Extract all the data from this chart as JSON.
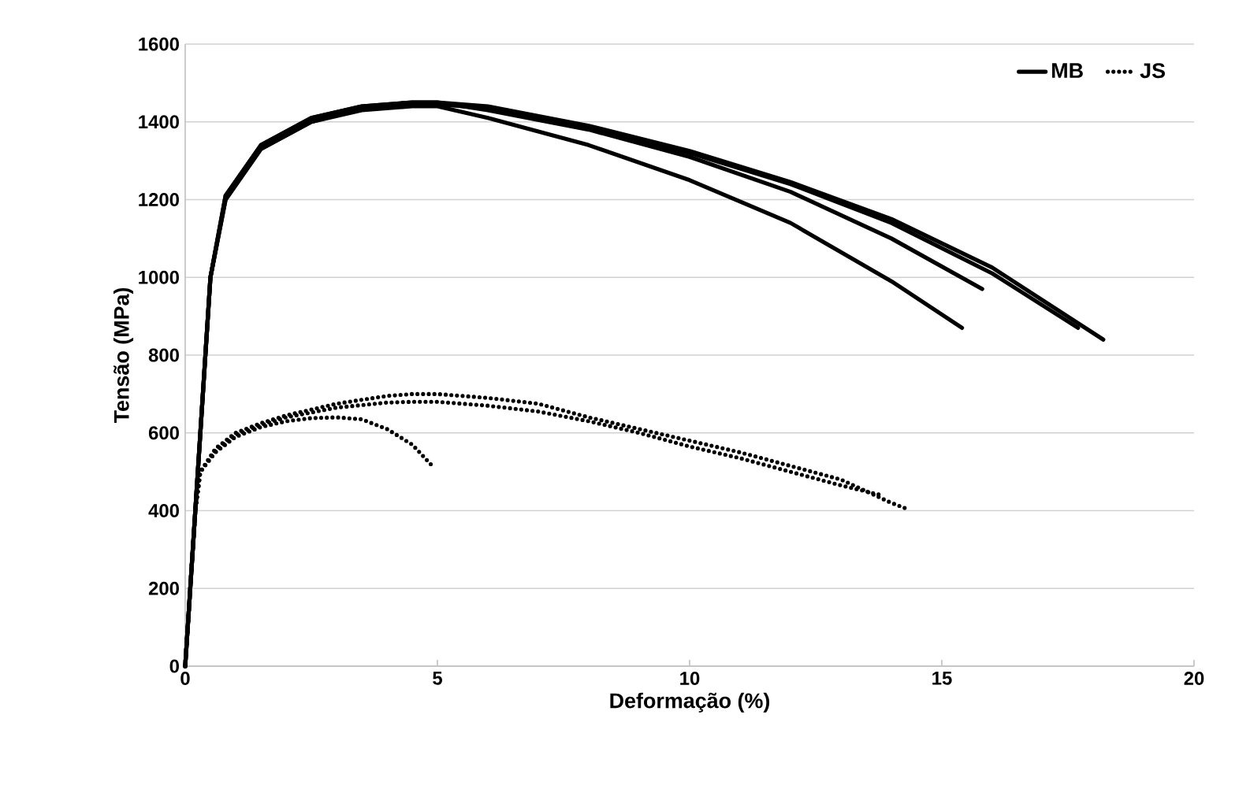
{
  "chart_data": {
    "type": "line",
    "xlabel": "Deformação (%)",
    "ylabel": "Tensão (MPa)",
    "xlim": [
      0,
      20
    ],
    "ylim": [
      0,
      1600
    ],
    "xticks": [
      0,
      5,
      10,
      15,
      20
    ],
    "yticks": [
      0,
      200,
      400,
      600,
      800,
      1000,
      1200,
      1400,
      1600
    ],
    "grid": "y",
    "legend": "top right",
    "series": [
      {
        "name": "MB",
        "color": "#000000",
        "line_style": "solid",
        "x": [
          0,
          0.15,
          0.3,
          0.5,
          0.8,
          1.5,
          2.5,
          3.5,
          4.5,
          5,
          6,
          8,
          10,
          12,
          14,
          15.4
        ],
        "values": [
          0,
          300,
          600,
          1000,
          1200,
          1330,
          1400,
          1430,
          1440,
          1440,
          1410,
          1340,
          1250,
          1140,
          990,
          870
        ]
      },
      {
        "color": "#000000",
        "line_style": "solid",
        "x": [
          0,
          0.15,
          0.3,
          0.5,
          0.8,
          1.5,
          2.5,
          3.5,
          4.5,
          5,
          6,
          8,
          10,
          12,
          14,
          15.8
        ],
        "values": [
          0,
          300,
          600,
          1000,
          1210,
          1340,
          1410,
          1440,
          1450,
          1450,
          1430,
          1380,
          1310,
          1220,
          1100,
          970
        ]
      },
      {
        "color": "#000000",
        "line_style": "solid",
        "x": [
          0,
          0.15,
          0.3,
          0.5,
          0.8,
          1.5,
          2.5,
          3.5,
          4.5,
          5,
          6,
          8,
          10,
          12,
          14,
          16,
          17.7
        ],
        "values": [
          0,
          300,
          600,
          1000,
          1200,
          1330,
          1400,
          1435,
          1445,
          1445,
          1435,
          1385,
          1320,
          1240,
          1140,
          1010,
          870
        ]
      },
      {
        "color": "#000000",
        "line_style": "solid",
        "x": [
          0,
          0.15,
          0.3,
          0.5,
          0.8,
          1.5,
          2.5,
          3.5,
          4.5,
          5,
          6,
          8,
          10,
          12,
          14,
          16,
          18.2
        ],
        "values": [
          0,
          300,
          600,
          1000,
          1210,
          1340,
          1410,
          1440,
          1450,
          1450,
          1440,
          1390,
          1325,
          1245,
          1150,
          1025,
          840
        ]
      },
      {
        "name": "JS",
        "color": "#000000",
        "line_style": "dotted",
        "x": [
          0,
          0.1,
          0.2,
          0.3,
          0.6,
          1,
          1.5,
          2,
          2.5,
          3,
          3.5,
          4,
          4.5,
          4.9
        ],
        "values": [
          0,
          200,
          400,
          500,
          550,
          590,
          615,
          630,
          638,
          640,
          635,
          610,
          570,
          515
        ]
      },
      {
        "color": "#000000",
        "line_style": "dotted",
        "x": [
          0,
          0.1,
          0.2,
          0.3,
          0.6,
          1,
          1.5,
          2,
          3,
          4,
          4.5,
          5,
          6,
          7,
          8,
          9,
          10,
          11,
          12,
          13,
          14,
          14.3
        ],
        "values": [
          0,
          200,
          400,
          500,
          560,
          600,
          625,
          645,
          675,
          695,
          700,
          700,
          690,
          675,
          640,
          610,
          580,
          550,
          515,
          480,
          420,
          405
        ]
      },
      {
        "color": "#000000",
        "line_style": "dotted",
        "x": [
          0,
          0.1,
          0.2,
          0.3,
          0.6,
          1,
          1.5,
          2,
          3,
          4,
          4.5,
          5,
          6,
          7,
          8,
          9,
          10,
          11,
          12,
          13,
          13.8
        ],
        "values": [
          0,
          200,
          400,
          500,
          555,
          595,
          620,
          640,
          665,
          678,
          680,
          680,
          670,
          655,
          630,
          600,
          565,
          535,
          500,
          465,
          440
        ]
      }
    ]
  }
}
